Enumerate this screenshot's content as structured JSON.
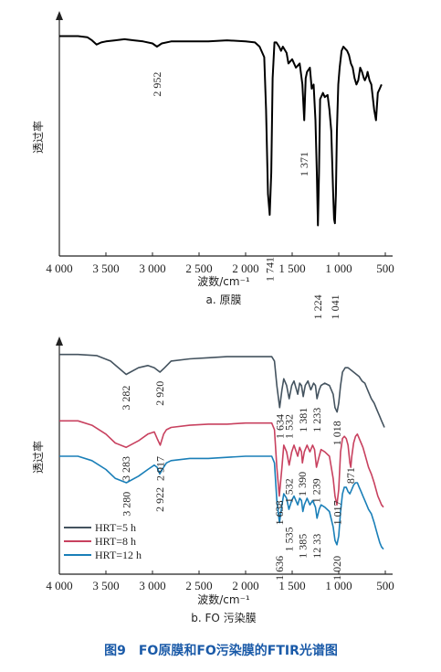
{
  "figure_caption": "图9　FO原膜和FO污染膜的FTIR光谱图",
  "chart_data": [
    {
      "type": "line",
      "subtitle": "a. 原膜",
      "xlabel": "波数/cm⁻¹",
      "ylabel": "透过率",
      "xlim": [
        4000,
        500
      ],
      "xticks": [
        "4 000",
        "3 500",
        "3 000",
        "2 500",
        "2 000",
        "1 500",
        "1 000",
        "500"
      ],
      "xtick_values": [
        4000,
        3500,
        3000,
        2500,
        2000,
        1500,
        1000,
        500
      ],
      "ylim": [
        0,
        1
      ],
      "series": [
        {
          "color": "#000000",
          "x": [
            4000,
            3900,
            3800,
            3700,
            3650,
            3600,
            3550,
            3500,
            3400,
            3300,
            3200,
            3100,
            3000,
            2952,
            2900,
            2800,
            2600,
            2400,
            2200,
            2000,
            1900,
            1850,
            1800,
            1780,
            1760,
            1741,
            1725,
            1710,
            1690,
            1670,
            1640,
            1620,
            1600,
            1560,
            1540,
            1500,
            1460,
            1420,
            1390,
            1371,
            1355,
            1340,
            1310,
            1290,
            1270,
            1250,
            1235,
            1224,
            1212,
            1200,
            1170,
            1150,
            1120,
            1100,
            1080,
            1060,
            1050,
            1041,
            1030,
            1020,
            1005,
            990,
            970,
            950,
            930,
            910,
            890,
            870,
            850,
            830,
            810,
            790,
            770,
            750,
            730,
            720,
            700,
            690,
            670,
            650,
            620,
            600,
            580,
            560,
            540
          ],
          "y": [
            0.95,
            0.95,
            0.95,
            0.945,
            0.93,
            0.91,
            0.92,
            0.925,
            0.93,
            0.935,
            0.93,
            0.925,
            0.915,
            0.9,
            0.915,
            0.925,
            0.925,
            0.925,
            0.93,
            0.925,
            0.92,
            0.9,
            0.85,
            0.6,
            0.2,
            0.1,
            0.3,
            0.75,
            0.92,
            0.92,
            0.9,
            0.88,
            0.9,
            0.87,
            0.82,
            0.84,
            0.8,
            0.82,
            0.72,
            0.55,
            0.75,
            0.78,
            0.8,
            0.7,
            0.72,
            0.55,
            0.3,
            0.05,
            0.3,
            0.65,
            0.68,
            0.66,
            0.67,
            0.6,
            0.5,
            0.2,
            0.08,
            0.06,
            0.2,
            0.5,
            0.72,
            0.8,
            0.88,
            0.9,
            0.89,
            0.88,
            0.86,
            0.82,
            0.8,
            0.75,
            0.72,
            0.74,
            0.8,
            0.78,
            0.75,
            0.74,
            0.76,
            0.78,
            0.74,
            0.72,
            0.6,
            0.55,
            0.68,
            0.7,
            0.72
          ]
        }
      ],
      "annotations": [
        {
          "text": "2 952",
          "x": 2952,
          "y": 0.78
        },
        {
          "text": "1 741",
          "x": 1741,
          "y": -0.1
        },
        {
          "text": "1 371",
          "x": 1371,
          "y": 0.4
        },
        {
          "text": "1 224",
          "x": 1224,
          "y": -0.28
        },
        {
          "text": "1 041",
          "x": 1041,
          "y": -0.28
        }
      ]
    },
    {
      "type": "line",
      "subtitle": "b. FO 污染膜",
      "xlabel": "波数/cm⁻¹",
      "ylabel": "透过率",
      "xlim": [
        4000,
        500
      ],
      "xticks": [
        "4 000",
        "3 500",
        "3 000",
        "2 500",
        "2 000",
        "1 500",
        "1 000",
        "500"
      ],
      "xtick_values": [
        4000,
        3500,
        3000,
        2500,
        2000,
        1500,
        1000,
        500
      ],
      "ylim": [
        0,
        1
      ],
      "legend_position": "bottom-left",
      "series": [
        {
          "name": "HRT=5 h",
          "color": "#44535f",
          "x": [
            4000,
            3800,
            3600,
            3450,
            3282,
            3150,
            3050,
            2980,
            2920,
            2870,
            2800,
            2600,
            2400,
            2200,
            2000,
            1800,
            1720,
            1690,
            1665,
            1634,
            1610,
            1590,
            1560,
            1532,
            1505,
            1480,
            1440,
            1420,
            1400,
            1381,
            1360,
            1330,
            1300,
            1270,
            1250,
            1233,
            1210,
            1190,
            1150,
            1100,
            1060,
            1040,
            1018,
            1000,
            980,
            960,
            930,
            900,
            870,
            840,
            810,
            780,
            750,
            720,
            700,
            680,
            650,
            620,
            600,
            580,
            560,
            540,
            520,
            510
          ],
          "y": [
            0.96,
            0.96,
            0.955,
            0.93,
            0.87,
            0.9,
            0.91,
            0.9,
            0.88,
            0.9,
            0.93,
            0.94,
            0.945,
            0.95,
            0.95,
            0.95,
            0.95,
            0.93,
            0.82,
            0.72,
            0.8,
            0.85,
            0.82,
            0.76,
            0.82,
            0.84,
            0.78,
            0.83,
            0.82,
            0.77,
            0.82,
            0.84,
            0.8,
            0.83,
            0.82,
            0.76,
            0.8,
            0.82,
            0.83,
            0.82,
            0.78,
            0.72,
            0.7,
            0.74,
            0.82,
            0.88,
            0.9,
            0.9,
            0.89,
            0.88,
            0.87,
            0.86,
            0.84,
            0.83,
            0.81,
            0.79,
            0.76,
            0.74,
            0.72,
            0.7,
            0.68,
            0.66,
            0.64,
            0.63
          ]
        },
        {
          "name": "HRT=8 h",
          "color": "#c8415f",
          "x": [
            4000,
            3800,
            3650,
            3500,
            3400,
            3283,
            3150,
            3050,
            2980,
            2950,
            2917,
            2880,
            2850,
            2800,
            2600,
            2400,
            2200,
            2000,
            1800,
            1720,
            1690,
            1665,
            1638,
            1610,
            1590,
            1560,
            1532,
            1505,
            1480,
            1440,
            1420,
            1400,
            1390,
            1370,
            1340,
            1310,
            1280,
            1260,
            1239,
            1210,
            1190,
            1150,
            1100,
            1060,
            1040,
            1020,
            1000,
            980,
            960,
            940,
            920,
            900,
            880,
            871,
            860,
            840,
            820,
            800,
            780,
            760,
            740,
            720,
            700,
            680,
            650,
            620,
            600,
            580,
            560,
            540,
            520
          ],
          "y": [
            0.66,
            0.66,
            0.64,
            0.6,
            0.56,
            0.54,
            0.57,
            0.6,
            0.61,
            0.58,
            0.55,
            0.6,
            0.62,
            0.63,
            0.64,
            0.645,
            0.645,
            0.65,
            0.65,
            0.65,
            0.62,
            0.45,
            0.32,
            0.45,
            0.55,
            0.52,
            0.46,
            0.52,
            0.55,
            0.5,
            0.54,
            0.52,
            0.47,
            0.52,
            0.55,
            0.52,
            0.55,
            0.53,
            0.45,
            0.5,
            0.53,
            0.52,
            0.5,
            0.4,
            0.32,
            0.28,
            0.35,
            0.52,
            0.58,
            0.59,
            0.58,
            0.55,
            0.47,
            0.45,
            0.5,
            0.56,
            0.59,
            0.6,
            0.58,
            0.56,
            0.54,
            0.51,
            0.48,
            0.45,
            0.42,
            0.38,
            0.35,
            0.32,
            0.3,
            0.28,
            0.27
          ]
        },
        {
          "name": "HRT=12 h",
          "color": "#1a7fb8",
          "x": [
            4000,
            3800,
            3650,
            3500,
            3400,
            3280,
            3150,
            3050,
            2980,
            2950,
            2922,
            2880,
            2850,
            2800,
            2600,
            2400,
            2200,
            2000,
            1800,
            1720,
            1690,
            1665,
            1636,
            1610,
            1590,
            1560,
            1535,
            1505,
            1480,
            1440,
            1420,
            1400,
            1385,
            1370,
            1340,
            1310,
            1280,
            1250,
            1233,
            1210,
            1190,
            1150,
            1100,
            1060,
            1040,
            1020,
            1000,
            980,
            960,
            940,
            920,
            900,
            880,
            860,
            840,
            820,
            800,
            780,
            760,
            740,
            720,
            700,
            680,
            650,
            620,
            600,
            580,
            560,
            540,
            520
          ],
          "y": [
            0.5,
            0.5,
            0.48,
            0.44,
            0.4,
            0.38,
            0.41,
            0.44,
            0.46,
            0.45,
            0.42,
            0.45,
            0.47,
            0.48,
            0.49,
            0.49,
            0.495,
            0.5,
            0.5,
            0.5,
            0.47,
            0.3,
            0.2,
            0.28,
            0.33,
            0.31,
            0.26,
            0.3,
            0.32,
            0.28,
            0.31,
            0.3,
            0.25,
            0.28,
            0.31,
            0.28,
            0.3,
            0.27,
            0.22,
            0.26,
            0.28,
            0.27,
            0.25,
            0.18,
            0.12,
            0.1,
            0.14,
            0.25,
            0.33,
            0.36,
            0.36,
            0.34,
            0.33,
            0.35,
            0.37,
            0.38,
            0.38,
            0.36,
            0.34,
            0.32,
            0.3,
            0.28,
            0.26,
            0.24,
            0.2,
            0.17,
            0.14,
            0.11,
            0.09,
            0.08
          ]
        }
      ],
      "annotations": [
        {
          "text": "3 282",
          "x": 3282,
          "y": 0.82,
          "series": 0
        },
        {
          "text": "2 920",
          "x": 2920,
          "y": 0.84,
          "series": 0
        },
        {
          "text": "1 634",
          "x": 1634,
          "y": 0.69,
          "series": 0
        },
        {
          "text": "1 532",
          "x": 1532,
          "y": 0.69,
          "series": 0
        },
        {
          "text": "1 381",
          "x": 1381,
          "y": 0.72,
          "series": 0
        },
        {
          "text": "1 233",
          "x": 1233,
          "y": 0.72,
          "series": 0
        },
        {
          "text": "1 018",
          "x": 1018,
          "y": 0.66,
          "series": 0
        },
        {
          "text": "3 283",
          "x": 3283,
          "y": 0.5,
          "series": 1
        },
        {
          "text": "2 917",
          "x": 2917,
          "y": 0.5,
          "series": 1
        },
        {
          "text": "1 638",
          "x": 1638,
          "y": 0.3,
          "series": 1
        },
        {
          "text": "1 532",
          "x": 1532,
          "y": 0.4,
          "series": 1
        },
        {
          "text": "1 390",
          "x": 1390,
          "y": 0.43,
          "series": 1
        },
        {
          "text": "1 239",
          "x": 1239,
          "y": 0.4,
          "series": 1
        },
        {
          "text": "871",
          "x": 871,
          "y": 0.45,
          "series": 1
        },
        {
          "text": "3 280",
          "x": 3280,
          "y": 0.34,
          "series": 2
        },
        {
          "text": "2 922",
          "x": 2922,
          "y": 0.36,
          "series": 2
        },
        {
          "text": "1 636",
          "x": 1636,
          "y": 0.05,
          "series": 2
        },
        {
          "text": "1 535",
          "x": 1535,
          "y": 0.18,
          "series": 2
        },
        {
          "text": "1 385",
          "x": 1385,
          "y": 0.15,
          "series": 2
        },
        {
          "text": "12 33",
          "x": 1233,
          "y": 0.15,
          "series": 2
        },
        {
          "text": "1 017",
          "x": 1017,
          "y": 0.3,
          "series": 1
        },
        {
          "text": "1 020",
          "x": 1020,
          "y": 0.05,
          "series": 2
        }
      ]
    }
  ]
}
